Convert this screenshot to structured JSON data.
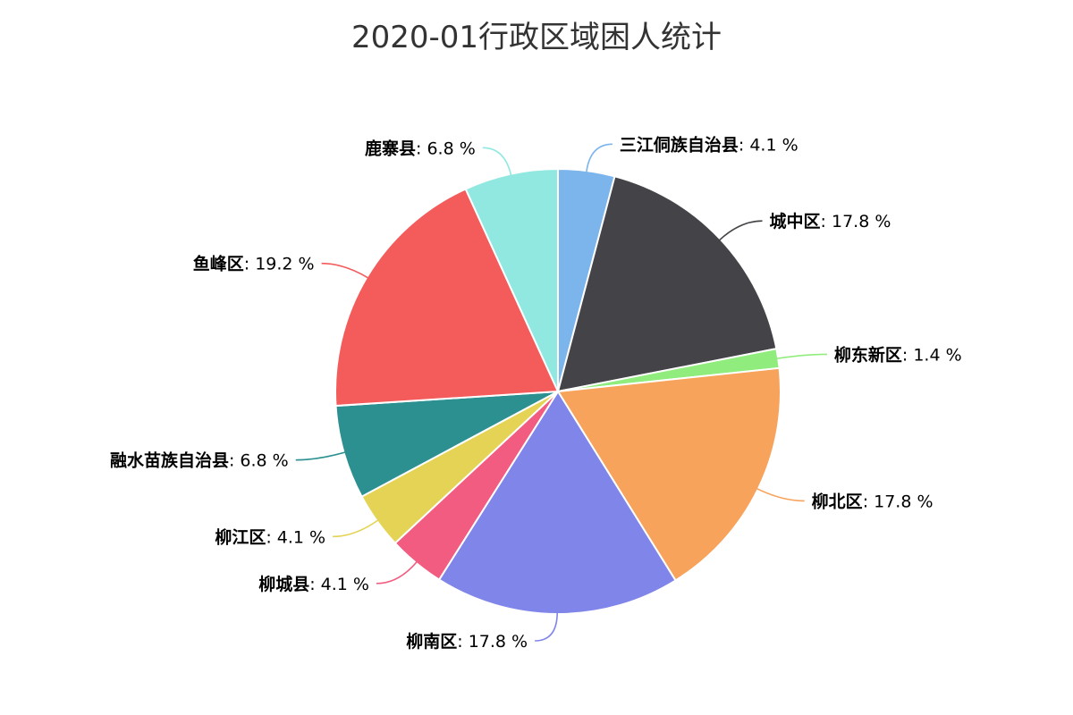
{
  "chart_data": {
    "type": "pie",
    "title": "2020-01行政区域困人统计",
    "label_format": "{name}: {value} %",
    "slices": [
      {
        "name": "三江侗族自治县",
        "value": 4.1,
        "color": "#7cb5ec"
      },
      {
        "name": "城中区",
        "value": 17.8,
        "color": "#434348"
      },
      {
        "name": "柳东新区",
        "value": 1.4,
        "color": "#90ed7d"
      },
      {
        "name": "柳北区",
        "value": 17.8,
        "color": "#f7a35c"
      },
      {
        "name": "柳南区",
        "value": 17.8,
        "color": "#8085e9"
      },
      {
        "name": "柳城县",
        "value": 4.1,
        "color": "#f15c80"
      },
      {
        "name": "柳江区",
        "value": 4.1,
        "color": "#e4d354"
      },
      {
        "name": "融水苗族自治县",
        "value": 6.8,
        "color": "#2b908f"
      },
      {
        "name": "鱼峰区",
        "value": 19.2,
        "color": "#f45b5b"
      },
      {
        "name": "鹿寨县",
        "value": 6.8,
        "color": "#91e8e1"
      }
    ]
  }
}
